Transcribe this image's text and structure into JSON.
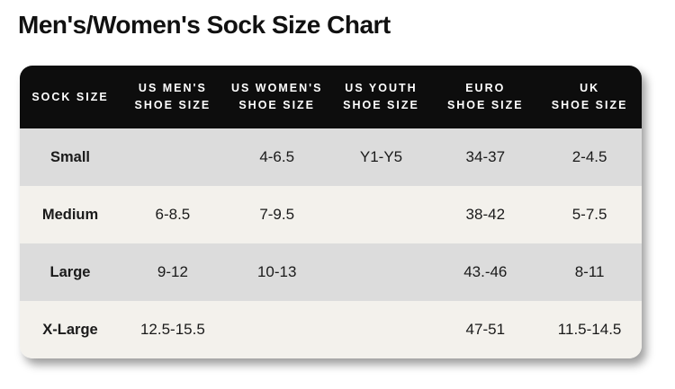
{
  "page": {
    "title": "Men's/Women's Sock Size Chart"
  },
  "header": {
    "cols": [
      {
        "line1": "SOCK SIZE",
        "line2": ""
      },
      {
        "line1": "US MEN'S",
        "line2": "SHOE SIZE"
      },
      {
        "line1": "US WOMEN'S",
        "line2": "SHOE SIZE"
      },
      {
        "line1": "US YOUTH",
        "line2": "SHOE SIZE"
      },
      {
        "line1": "EURO",
        "line2": "SHOE SIZE"
      },
      {
        "line1": "UK",
        "line2": "SHOE SIZE"
      }
    ]
  },
  "chart_data": {
    "type": "table",
    "title": "Men's/Women's Sock Size Chart",
    "columns": [
      "SOCK SIZE",
      "US MEN'S SHOE SIZE",
      "US WOMEN'S SHOE SIZE",
      "US YOUTH SHOE SIZE",
      "EURO SHOE SIZE",
      "UK SHOE SIZE"
    ],
    "rows": [
      [
        "Small",
        "",
        "4-6.5",
        "Y1-Y5",
        "34-37",
        "2-4.5"
      ],
      [
        "Medium",
        "6-8.5",
        "7-9.5",
        "",
        "38-42",
        "5-7.5"
      ],
      [
        "Large",
        "9-12",
        "10-13",
        "",
        "43.-46",
        "8-11"
      ],
      [
        "X-Large",
        "12.5-15.5",
        "",
        "",
        "47-51",
        "11.5-14.5"
      ]
    ]
  },
  "colors": {
    "header_bg": "#0d0d0d",
    "header_text": "#ffffff",
    "row_gray": "#dcdcdc",
    "row_cream": "#f3f1ec",
    "body_text": "#1a1a1a",
    "page_bg": "#ffffff"
  }
}
